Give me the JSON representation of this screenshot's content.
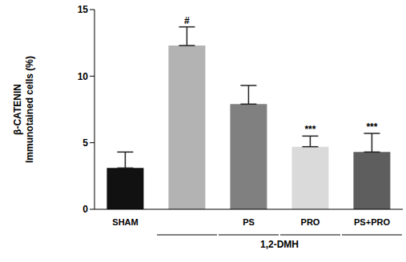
{
  "chart_data": {
    "type": "bar",
    "y_label": [
      "β-CATENIN",
      "Immunotained cells (%)"
    ],
    "categories": [
      "SHAM",
      null,
      "PS",
      "PRO",
      "PS+PRO"
    ],
    "values": [
      3.1,
      12.3,
      7.9,
      4.7,
      4.3
    ],
    "errors": [
      1.2,
      1.4,
      1.4,
      0.8,
      1.4
    ],
    "colors": [
      "#111111",
      "#b3b3b3",
      "#808080",
      "#dadada",
      "#5e5e5e"
    ],
    "annotations": [
      null,
      "#",
      null,
      "***",
      "***"
    ],
    "group": {
      "label": "1,2-DMH",
      "first": 1,
      "last": 4
    },
    "ylim": [
      0,
      15
    ],
    "yticks": [
      0,
      5,
      10,
      15
    ],
    "grid": false
  }
}
